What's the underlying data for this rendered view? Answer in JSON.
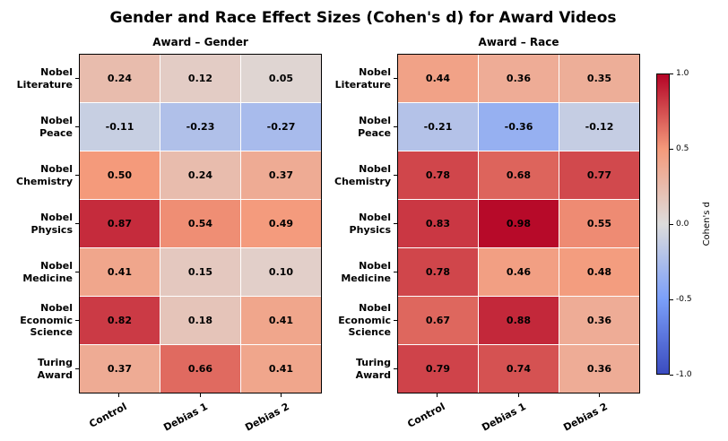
{
  "title": "Gender and Race Effect Sizes (Cohen's d) for Award Videos",
  "chart_data": [
    {
      "type": "heatmap",
      "title": "Award – Gender",
      "rows": [
        [
          "Nobel",
          "Literature"
        ],
        [
          "Nobel",
          "Peace"
        ],
        [
          "Nobel",
          "Chemistry"
        ],
        [
          "Nobel",
          "Physics"
        ],
        [
          "Nobel",
          "Medicine"
        ],
        [
          "Nobel",
          "Economic",
          "Science"
        ],
        [
          "Turing",
          "Award"
        ]
      ],
      "columns": [
        "Control",
        "Debias 1",
        "Debias 2"
      ],
      "values": [
        [
          0.24,
          0.12,
          0.05
        ],
        [
          -0.11,
          -0.23,
          -0.27
        ],
        [
          0.5,
          0.24,
          0.37
        ],
        [
          0.87,
          0.54,
          0.49
        ],
        [
          0.41,
          0.15,
          0.1
        ],
        [
          0.82,
          0.18,
          0.41
        ],
        [
          0.37,
          0.66,
          0.41
        ]
      ],
      "vmin": -1.0,
      "vmax": 1.0
    },
    {
      "type": "heatmap",
      "title": "Award – Race",
      "rows": [
        [
          "Nobel",
          "Literature"
        ],
        [
          "Nobel",
          "Peace"
        ],
        [
          "Nobel",
          "Chemistry"
        ],
        [
          "Nobel",
          "Physics"
        ],
        [
          "Nobel",
          "Medicine"
        ],
        [
          "Nobel",
          "Economic",
          "Science"
        ],
        [
          "Turing",
          "Award"
        ]
      ],
      "columns": [
        "Control",
        "Debias 1",
        "Debias 2"
      ],
      "values": [
        [
          0.44,
          0.36,
          0.35
        ],
        [
          -0.21,
          -0.36,
          -0.12
        ],
        [
          0.78,
          0.68,
          0.77
        ],
        [
          0.83,
          0.98,
          0.55
        ],
        [
          0.78,
          0.46,
          0.48
        ],
        [
          0.67,
          0.88,
          0.36
        ],
        [
          0.79,
          0.74,
          0.36
        ]
      ],
      "vmin": -1.0,
      "vmax": 1.0
    }
  ],
  "colorbar": {
    "label": "Cohen's d",
    "ticks": [
      {
        "label": "1.0",
        "value": 1.0
      },
      {
        "label": "0.5",
        "value": 0.5
      },
      {
        "label": "0.0",
        "value": 0.0
      },
      {
        "label": "-0.5",
        "value": -0.5
      },
      {
        "label": "-1.0",
        "value": -1.0
      }
    ],
    "colormap_stops": [
      {
        "value": -1.0,
        "color": "#3b4cc0"
      },
      {
        "value": -0.5,
        "color": "#7b9ff9"
      },
      {
        "value": 0.0,
        "color": "#dddcdc"
      },
      {
        "value": 0.5,
        "color": "#f49a7b"
      },
      {
        "value": 1.0,
        "color": "#b40426"
      }
    ]
  }
}
